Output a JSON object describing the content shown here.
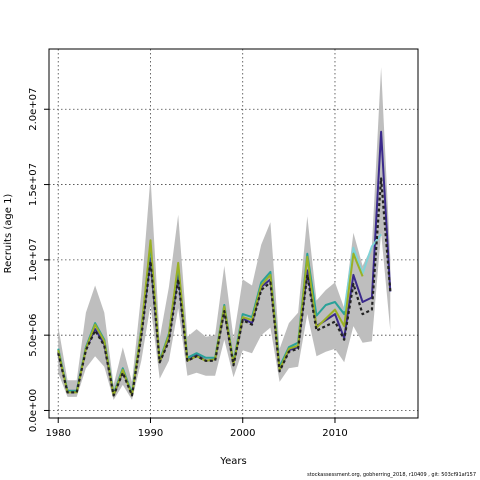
{
  "chart_data": {
    "type": "line",
    "xlabel": "Years",
    "ylabel": "Recruits (age 1)",
    "xlim": [
      1979,
      2019
    ],
    "ylim": [
      -500000,
      24000000
    ],
    "x_ticks": [
      1980,
      1990,
      2000,
      2010
    ],
    "x_tick_labels": [
      "1980",
      "1990",
      "2000",
      "2010"
    ],
    "y_ticks": [
      0,
      5000000,
      10000000,
      15000000,
      20000000
    ],
    "y_tick_labels": [
      "0.0e+00",
      "5.0e+06",
      "1.0e+07",
      "1.5e+07",
      "2.0e+07"
    ],
    "grid": true,
    "confidence_band": {
      "x": [
        1980,
        1981,
        1982,
        1983,
        1984,
        1985,
        1986,
        1987,
        1988,
        1989,
        1990,
        1991,
        1992,
        1993,
        1994,
        1995,
        1996,
        1997,
        1998,
        1999,
        2000,
        2001,
        2002,
        2003,
        2004,
        2005,
        2006,
        2007,
        2008,
        2009,
        2010,
        2011,
        2012,
        2013,
        2014,
        2015,
        2016
      ],
      "lower": [
        2500000,
        900000,
        900000,
        2800000,
        3600000,
        2900000,
        700000,
        1700000,
        700000,
        3300000,
        7000000,
        2100000,
        3300000,
        6800000,
        2300000,
        2500000,
        2300000,
        2300000,
        4700000,
        2200000,
        4000000,
        3800000,
        5000000,
        5500000,
        1900000,
        2800000,
        2900000,
        6400000,
        3600000,
        3900000,
        4100000,
        3200000,
        5600000,
        4500000,
        4600000,
        11800000,
        5300000
      ],
      "upper": [
        5600000,
        2000000,
        2000000,
        6500000,
        8300000,
        6500000,
        1700000,
        4200000,
        1900000,
        7800000,
        15500000,
        4800000,
        8200000,
        13000000,
        4900000,
        5400000,
        4900000,
        5000000,
        9600000,
        4800000,
        8700000,
        8300000,
        11000000,
        12500000,
        4100000,
        5800000,
        6500000,
        12900000,
        7300000,
        8000000,
        8500000,
        6800000,
        11800000,
        9600000,
        10900000,
        22800000,
        10100000
      ]
    },
    "series": [
      {
        "color": "#3b2a8c",
        "style": "solid",
        "x": [
          1980,
          1981,
          1982,
          1983,
          1984,
          1985,
          1986,
          1987,
          1988,
          1989,
          1990,
          1991,
          1992,
          1993,
          1994,
          1995,
          1996,
          1997,
          1998,
          1999,
          2000,
          2001,
          2002,
          2003,
          2004,
          2005,
          2006,
          2007,
          2008,
          2009,
          2010,
          2011,
          2012,
          2013,
          2014,
          2015,
          2016
        ],
        "values": [
          3900000,
          1300000,
          1300000,
          4100000,
          5400000,
          4400000,
          1000000,
          2600000,
          1100000,
          5100000,
          10100000,
          3200000,
          4800000,
          9000000,
          3300000,
          3700000,
          3300000,
          3400000,
          6700000,
          3100000,
          6100000,
          5800000,
          8200000,
          8700000,
          2700000,
          4000000,
          4200000,
          9300000,
          5600000,
          6000000,
          6400000,
          4800000,
          9000000,
          7200000,
          7500000,
          18500000,
          7900000
        ]
      },
      {
        "color": "#2aa198",
        "style": "solid",
        "x": [
          1980,
          1981,
          1982,
          1983,
          1984,
          1985,
          1986,
          1987,
          1988,
          1989,
          1990,
          1991,
          1992,
          1993,
          1994,
          1995,
          1996,
          1997,
          1998,
          1999,
          2000,
          2001,
          2002,
          2003,
          2004,
          2005,
          2006,
          2007,
          2008,
          2009,
          2010,
          2011,
          2012,
          2013
        ],
        "values": [
          4100000,
          1300000,
          1300000,
          4200000,
          5800000,
          4700000,
          1100000,
          2800000,
          1100000,
          5400000,
          11000000,
          3300000,
          5100000,
          9600000,
          3500000,
          3800000,
          3500000,
          3500000,
          7000000,
          3200000,
          6400000,
          6200000,
          8500000,
          9200000,
          2900000,
          4200000,
          4500000,
          10400000,
          6300000,
          7000000,
          7200000,
          6400000,
          10600000,
          9100000
        ]
      },
      {
        "color": "#7fd3d8",
        "style": "solid",
        "x": [
          2011,
          2012,
          2013,
          2014,
          2015
        ],
        "values": [
          6600000,
          10800000,
          9100000,
          10900000,
          11700000
        ]
      },
      {
        "color": "#9ab025",
        "style": "solid",
        "x": [
          1980,
          1981,
          1982,
          1983,
          1984,
          1985,
          1986,
          1987,
          1988,
          1989,
          1990,
          1991,
          1992,
          1993,
          1994,
          1995,
          1996,
          1997,
          1998,
          1999,
          2000,
          2001,
          2002,
          2003,
          2004,
          2005,
          2006,
          2007,
          2008,
          2009,
          2010,
          2011,
          2012,
          2013
        ],
        "values": [
          4000000,
          1200000,
          1200000,
          4100000,
          5700000,
          4600000,
          1000000,
          2700000,
          1000000,
          5300000,
          11300000,
          3200000,
          5000000,
          9800000,
          3300000,
          3600000,
          3300000,
          3400000,
          6900000,
          3100000,
          6200000,
          6000000,
          8300000,
          9000000,
          2700000,
          4100000,
          4300000,
          10200000,
          5500000,
          6100000,
          6700000,
          5600000,
          10400000,
          8900000
        ]
      },
      {
        "color": "#222222",
        "style": "dashed",
        "x": [
          1980,
          1981,
          1982,
          1983,
          1984,
          1985,
          1986,
          1987,
          1988,
          1989,
          1990,
          1991,
          1992,
          1993,
          1994,
          1995,
          1996,
          1997,
          1998,
          1999,
          2000,
          2001,
          2002,
          2003,
          2004,
          2005,
          2006,
          2007,
          2008,
          2009,
          2010,
          2011,
          2012,
          2013,
          2014,
          2015,
          2016
        ],
        "values": [
          3800000,
          1200000,
          1200000,
          4000000,
          5300000,
          4300000,
          1000000,
          2500000,
          1000000,
          4900000,
          9900000,
          3200000,
          4600000,
          8700000,
          3300000,
          3600000,
          3300000,
          3300000,
          6600000,
          3000000,
          6000000,
          5700000,
          8000000,
          8500000,
          2600000,
          3900000,
          4100000,
          9000000,
          5300000,
          5600000,
          5900000,
          4700000,
          8400000,
          6400000,
          6700000,
          15400000,
          7900000
        ]
      }
    ]
  },
  "footer": "stockassessment.org, gobherring_2018, r10409 , git: 503cf91af157"
}
